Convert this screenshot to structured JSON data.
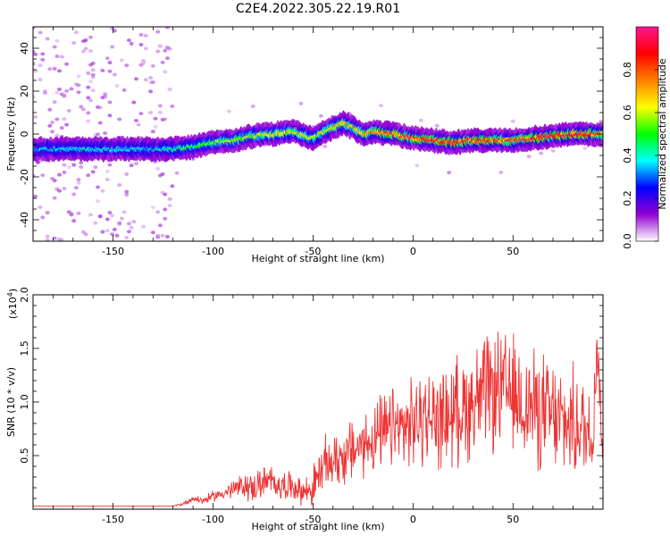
{
  "title": "C2E4.2022.305.22.19.R01",
  "chart_data": [
    {
      "type": "heatmap",
      "xlabel": "Height of straight line (km)",
      "ylabel": "Frequency (Hz)",
      "xlim": [
        -190,
        95
      ],
      "ylim": [
        -50,
        50
      ],
      "xticks": [
        -150,
        -100,
        -50,
        0,
        50
      ],
      "yticks": [
        -40,
        -20,
        0,
        20,
        40
      ],
      "colorbar": {
        "label": "Normalized spectral amplitude",
        "range": [
          0.0,
          1.0
        ],
        "ticks": [
          "0.0",
          "0.2",
          "0.4",
          "0.6",
          "0.8"
        ],
        "colors": [
          "#ffffff",
          "#9400d3",
          "#0000ff",
          "#00ffff",
          "#00ff00",
          "#ffff00",
          "#ff8000",
          "#ff0000",
          "#ff1493"
        ]
      },
      "ridge": {
        "x": [
          -190,
          -170,
          -150,
          -130,
          -120,
          -110,
          -100,
          -90,
          -80,
          -70,
          -60,
          -50,
          -40,
          -35,
          -30,
          -25,
          -20,
          -10,
          0,
          10,
          20,
          30,
          40,
          50,
          60,
          70,
          80,
          90,
          95
        ],
        "y": [
          -7,
          -7,
          -7,
          -7,
          -7,
          -6,
          -4,
          -3,
          -1,
          0,
          1,
          -2,
          3,
          5,
          3,
          0,
          1,
          0,
          -2,
          -3,
          -4,
          -3,
          -3,
          -3,
          -2,
          -1,
          0,
          0,
          0
        ],
        "peak_amplitude": [
          0.35,
          0.4,
          0.38,
          0.35,
          0.45,
          0.5,
          0.55,
          0.6,
          0.6,
          0.65,
          0.65,
          0.6,
          0.65,
          0.7,
          0.65,
          0.75,
          0.8,
          0.85,
          0.85,
          0.9,
          0.9,
          0.85,
          0.85,
          0.85,
          0.9,
          0.95,
          0.95,
          0.9,
          0.8
        ]
      }
    },
    {
      "type": "line",
      "xlabel": "Height of straight line (km)",
      "ylabel": "SNR (10 * v/v)",
      "multiplier_label": "(x10",
      "multiplier_exp": "4",
      "multiplier_close": ")",
      "xlim": [
        -190,
        95
      ],
      "ylim": [
        0,
        2.0
      ],
      "xticks": [
        -150,
        -100,
        -50,
        0,
        50
      ],
      "yticks": [
        "0.5",
        "1.0",
        "1.5",
        "2.0"
      ],
      "series": [
        {
          "color": "#ee3333",
          "x": [
            -190,
            -170,
            -150,
            -130,
            -120,
            -115,
            -110,
            -105,
            -100,
            -95,
            -90,
            -85,
            -80,
            -75,
            -70,
            -65,
            -60,
            -55,
            -50,
            -45,
            -40,
            -35,
            -30,
            -25,
            -20,
            -15,
            -10,
            -5,
            0,
            5,
            10,
            15,
            20,
            25,
            30,
            35,
            40,
            45,
            50,
            55,
            60,
            65,
            70,
            75,
            80,
            85,
            90,
            92,
            95
          ],
          "y": [
            0.03,
            0.03,
            0.03,
            0.03,
            0.03,
            0.05,
            0.1,
            0.08,
            0.12,
            0.15,
            0.18,
            0.22,
            0.2,
            0.25,
            0.25,
            0.22,
            0.22,
            0.16,
            0.2,
            0.4,
            0.45,
            0.5,
            0.55,
            0.6,
            0.65,
            0.7,
            0.75,
            0.75,
            0.8,
            0.85,
            0.85,
            0.85,
            0.9,
            0.95,
            1.0,
            1.05,
            1.1,
            1.1,
            1.05,
            1.0,
            0.95,
            0.9,
            0.85,
            0.8,
            0.8,
            0.75,
            0.7,
            1.6,
            0.5
          ],
          "spread": [
            0,
            0,
            0,
            0,
            0,
            0.02,
            0.03,
            0.04,
            0.05,
            0.06,
            0.1,
            0.12,
            0.14,
            0.16,
            0.15,
            0.14,
            0.13,
            0.12,
            0.2,
            0.25,
            0.25,
            0.3,
            0.3,
            0.3,
            0.35,
            0.35,
            0.4,
            0.4,
            0.4,
            0.45,
            0.45,
            0.45,
            0.5,
            0.5,
            0.55,
            0.55,
            0.55,
            0.55,
            0.55,
            0.55,
            0.55,
            0.55,
            0.55,
            0.5,
            0.5,
            0.5,
            0.5,
            0.3,
            0.4
          ]
        }
      ]
    }
  ]
}
